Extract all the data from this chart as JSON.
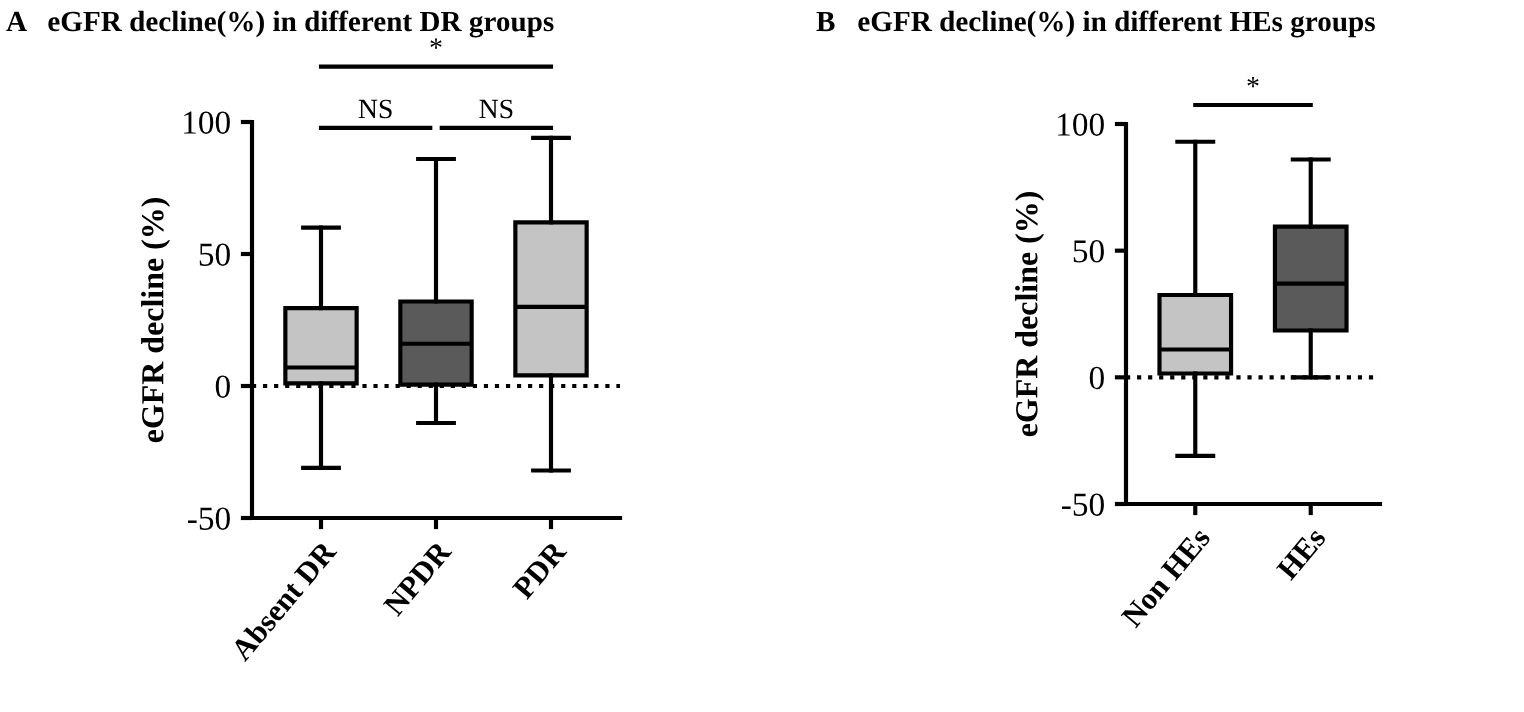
{
  "chart_data": [
    {
      "type": "box",
      "title": "A   eGFR decline(%) in different DR groups",
      "ylabel": "eGFR decline (%)",
      "categories": [
        "Absent DR",
        "NPDR",
        "PDR"
      ],
      "boxes": [
        {
          "low": -31,
          "q1": 1,
          "median": 7,
          "q3": 29.5,
          "high": 60
        },
        {
          "low": -14,
          "q1": 0.5,
          "median": 16,
          "q3": 32,
          "high": 86
        },
        {
          "low": -32,
          "q1": 4,
          "median": 30,
          "q3": 62,
          "high": 94
        }
      ],
      "colors": [
        "#c4c4c4",
        "#5a5a5a",
        "#c4c4c4"
      ],
      "ylim": [
        -50,
        100
      ],
      "yticks": [
        -50,
        0,
        50,
        100
      ],
      "ref_lines": [
        {
          "axis": "y",
          "value": 0,
          "line_style": "dotted",
          "color": "#000000"
        }
      ],
      "annotations": [
        "NS",
        "NS",
        "*"
      ],
      "grid": false
    },
    {
      "type": "box",
      "title": "B   eGFR decline(%) in different HEs groups",
      "ylabel": "eGFR decline (%)",
      "categories": [
        "Non HEs",
        "HEs"
      ],
      "boxes": [
        {
          "low": -31,
          "q1": 1.5,
          "median": 11,
          "q3": 32.5,
          "high": 93
        },
        {
          "low": 0,
          "q1": 18.5,
          "median": 37,
          "q3": 59.5,
          "high": 86
        }
      ],
      "colors": [
        "#c4c4c4",
        "#5a5a5a"
      ],
      "ylim": [
        -50,
        100
      ],
      "yticks": [
        -50,
        0,
        50,
        100
      ],
      "ref_lines": [
        {
          "axis": "y",
          "value": 0,
          "line_style": "dotted",
          "color": "#000000"
        }
      ],
      "annotations": [
        "*"
      ],
      "grid": false
    }
  ]
}
